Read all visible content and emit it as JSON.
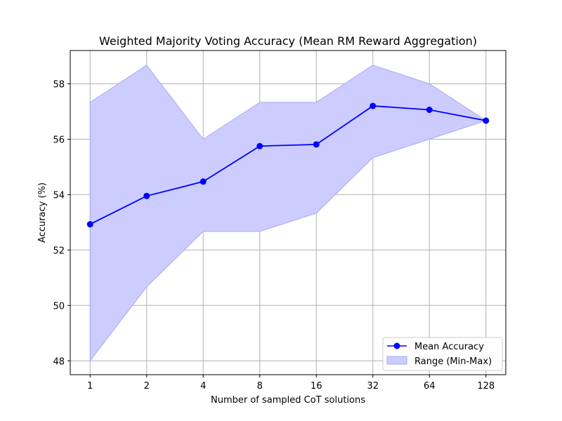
{
  "chart_data": {
    "type": "line",
    "title": "Weighted Majority Voting Accuracy (Mean RM Reward Aggregation)",
    "xlabel": "Number of sampled CoT solutions",
    "ylabel": "Accuracy (%)",
    "x": [
      "1",
      "2",
      "4",
      "8",
      "16",
      "32",
      "64",
      "128"
    ],
    "yticks": [
      "48",
      "50",
      "52",
      "54",
      "56",
      "58"
    ],
    "ylim": [
      47.5,
      59.2
    ],
    "grid": true,
    "legend_position": "lower-right",
    "series": [
      {
        "name": "Mean Accuracy",
        "values": [
          52.93,
          53.95,
          54.47,
          55.75,
          55.81,
          57.2,
          57.06,
          56.67
        ],
        "color": "#0000ff",
        "marker": "circle"
      }
    ],
    "range_band": {
      "name": "Range (Min-Max)",
      "min": [
        48.0,
        50.67,
        52.67,
        52.67,
        53.33,
        55.33,
        56.0,
        56.67
      ],
      "max": [
        57.33,
        58.67,
        56.0,
        57.33,
        57.33,
        58.67,
        58.0,
        56.67
      ],
      "fill_color": "#ccccff",
      "edge_color": "#aaaaf0"
    }
  }
}
